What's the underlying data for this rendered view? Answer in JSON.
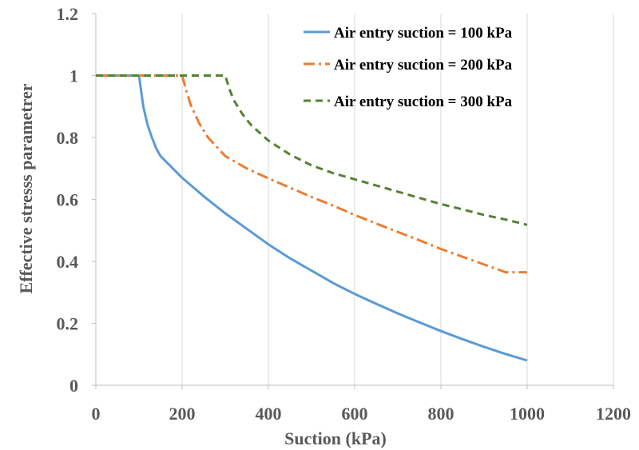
{
  "chart_data": {
    "type": "line",
    "title": "",
    "xlabel": "Suction (kPa)",
    "ylabel": "Effective stresss parametrer",
    "xlim": [
      0,
      1200
    ],
    "ylim": [
      0,
      1.2
    ],
    "xticks": [
      0,
      200,
      400,
      600,
      800,
      1000,
      1200
    ],
    "yticks": [
      0,
      0.2,
      0.4,
      0.6,
      0.8,
      1,
      1.2
    ],
    "xtick_labels": [
      "0",
      "200",
      "400",
      "600",
      "800",
      "1000",
      "1200"
    ],
    "ytick_labels": [
      "0",
      "0.2",
      "0.4",
      "0.6",
      "0.8",
      "1",
      "1.2"
    ],
    "grid": "vertical",
    "legend_position": "top-right",
    "series": [
      {
        "name": "Air entry suction = 100 kPa",
        "color": "#5b9bd5",
        "dash": "solid",
        "x": [
          0,
          100,
          105,
          110,
          120,
          130,
          140,
          150,
          175,
          200,
          250,
          300,
          350,
          400,
          450,
          500,
          550,
          600,
          650,
          700,
          750,
          800,
          850,
          900,
          950,
          1000
        ],
        "y": [
          1,
          1,
          0.95,
          0.9,
          0.84,
          0.8,
          0.765,
          0.74,
          0.705,
          0.67,
          0.61,
          0.555,
          0.505,
          0.455,
          0.41,
          0.37,
          0.33,
          0.295,
          0.263,
          0.232,
          0.203,
          0.175,
          0.149,
          0.124,
          0.101,
          0.08
        ]
      },
      {
        "name": "Air entry suction = 200 kPa",
        "color": "#ed7d31",
        "dash": "dashdot",
        "x": [
          0,
          200,
          210,
          220,
          240,
          260,
          280,
          300,
          350,
          400,
          450,
          500,
          550,
          600,
          650,
          700,
          750,
          800,
          850,
          900,
          950,
          1000
        ],
        "y": [
          1,
          1,
          0.95,
          0.905,
          0.845,
          0.8,
          0.77,
          0.74,
          0.7,
          0.668,
          0.638,
          0.608,
          0.58,
          0.55,
          0.522,
          0.495,
          0.468,
          0.44,
          0.415,
          0.39,
          0.365,
          0.365
        ]
      },
      {
        "name": "Air entry suction = 300 kPa",
        "color": "#548235",
        "dash": "dashed",
        "x": [
          0,
          300,
          310,
          320,
          340,
          360,
          380,
          400,
          450,
          500,
          550,
          600,
          650,
          700,
          750,
          800,
          850,
          900,
          950,
          1000
        ],
        "y": [
          1,
          1,
          0.955,
          0.92,
          0.875,
          0.84,
          0.815,
          0.79,
          0.745,
          0.71,
          0.685,
          0.665,
          0.645,
          0.625,
          0.605,
          0.585,
          0.568,
          0.55,
          0.535,
          0.518
        ]
      }
    ]
  }
}
